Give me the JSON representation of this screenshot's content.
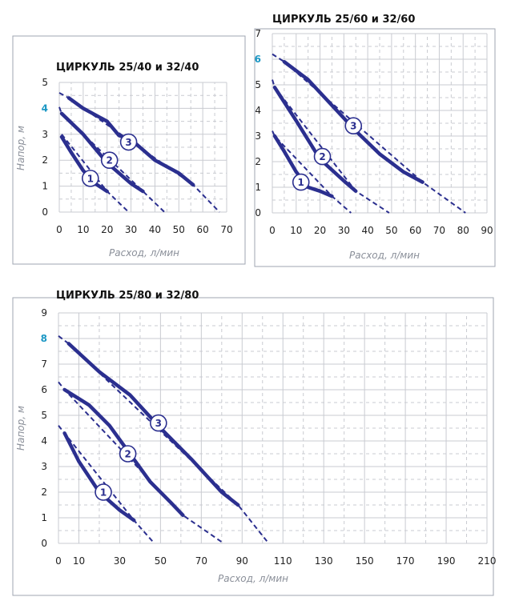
{
  "chart_data": [
    {
      "type": "line",
      "title": "ЦИРКУЛЬ 25/40 и 32/40",
      "xlabel": "Расход, л/мин",
      "ylabel": "Напор, м",
      "xlim": [
        0,
        70
      ],
      "ylim": [
        0,
        5
      ],
      "xticks": [
        "0",
        "10",
        "20",
        "30",
        "40",
        "50",
        "60",
        "70"
      ],
      "yticks": [
        "0",
        "1",
        "2",
        "3",
        "4",
        "5"
      ],
      "highlight_y": "4",
      "grid": true,
      "series": [
        {
          "name": "1",
          "x": [
            1,
            5,
            10,
            15,
            20
          ],
          "y": [
            2.9,
            2.3,
            1.6,
            1.1,
            0.8
          ],
          "ext_x": [
            1,
            20,
            29
          ],
          "ext_y": [
            3.0,
            0.8,
            0.0
          ],
          "label_x": 13,
          "label_y": 1.3
        },
        {
          "name": "2",
          "x": [
            1,
            10,
            20,
            30,
            35
          ],
          "y": [
            3.8,
            3.0,
            1.9,
            1.1,
            0.8
          ],
          "ext_x": [
            0,
            1,
            35,
            44
          ],
          "ext_y": [
            4.05,
            3.8,
            0.8,
            0.0
          ],
          "label_x": 21,
          "label_y": 2.0
        },
        {
          "name": "3",
          "x": [
            4,
            10,
            20,
            25,
            30,
            40,
            50,
            56
          ],
          "y": [
            4.4,
            4.0,
            3.5,
            2.95,
            2.8,
            2.0,
            1.5,
            1.05
          ],
          "ext_x": [
            0,
            4,
            56,
            67
          ],
          "ext_y": [
            4.6,
            4.4,
            1.05,
            0.0
          ],
          "label_x": 29,
          "label_y": 2.7
        }
      ]
    },
    {
      "type": "line",
      "title": "ЦИРКУЛЬ 25/60 и 32/60",
      "xlabel": "Расход, л/мин",
      "ylabel": "",
      "xlim": [
        0,
        90
      ],
      "ylim": [
        0,
        7
      ],
      "xticks": [
        "0",
        "10",
        "20",
        "30",
        "40",
        "50",
        "60",
        "70",
        "80",
        "90"
      ],
      "yticks": [
        "0",
        "1",
        "2",
        "3",
        "4",
        "5",
        "6",
        "7"
      ],
      "highlight_y": "6",
      "grid": true,
      "series": [
        {
          "name": "1",
          "x": [
            1,
            5,
            10,
            15,
            20,
            25
          ],
          "y": [
            3.0,
            2.4,
            1.6,
            1.0,
            0.85,
            0.65
          ],
          "ext_x": [
            0,
            1,
            25,
            33
          ],
          "ext_y": [
            3.2,
            3.0,
            0.65,
            0.0
          ],
          "label_x": 12,
          "label_y": 1.2
        },
        {
          "name": "2",
          "x": [
            1,
            10,
            20,
            30,
            35
          ],
          "y": [
            4.9,
            3.6,
            2.1,
            1.25,
            0.85
          ],
          "ext_x": [
            0,
            1,
            35,
            49
          ],
          "ext_y": [
            5.2,
            4.9,
            0.85,
            0.0
          ],
          "label_x": 21,
          "label_y": 2.2
        },
        {
          "name": "3",
          "x": [
            5,
            15,
            25,
            35,
            45,
            55,
            63
          ],
          "y": [
            5.9,
            5.2,
            4.2,
            3.2,
            2.3,
            1.6,
            1.2
          ],
          "ext_x": [
            0,
            5,
            63,
            81
          ],
          "ext_y": [
            6.2,
            5.9,
            1.2,
            0.0
          ],
          "label_x": 34,
          "label_y": 3.4
        }
      ]
    },
    {
      "type": "line",
      "title": "ЦИРКУЛЬ 25/80 и 32/80",
      "xlabel": "Расход, л/мин",
      "ylabel": "Напор, м",
      "xlim": [
        0,
        210
      ],
      "ylim": [
        0,
        9
      ],
      "xticks": [
        "0",
        "10",
        "30",
        "50",
        "70",
        "90",
        "110",
        "130",
        "150",
        "170",
        "190",
        "210"
      ],
      "xtick_values": [
        0,
        10,
        30,
        50,
        70,
        90,
        110,
        130,
        150,
        170,
        190,
        210
      ],
      "yticks": [
        "0",
        "1",
        "2",
        "3",
        "4",
        "5",
        "6",
        "7",
        "8",
        "9"
      ],
      "highlight_y": "8",
      "grid": true,
      "series": [
        {
          "name": "1",
          "x": [
            3,
            10,
            20,
            30,
            37
          ],
          "y": [
            4.3,
            3.2,
            2.0,
            1.3,
            0.9
          ],
          "ext_x": [
            0,
            3,
            37,
            47
          ],
          "ext_y": [
            4.6,
            4.3,
            0.9,
            0.0
          ],
          "label_x": 22,
          "label_y": 2.0
        },
        {
          "name": "2",
          "x": [
            3,
            15,
            25,
            35,
            45,
            55,
            61
          ],
          "y": [
            6.0,
            5.4,
            4.6,
            3.5,
            2.4,
            1.6,
            1.1
          ],
          "ext_x": [
            0,
            3,
            61,
            81
          ],
          "ext_y": [
            6.3,
            6.0,
            1.1,
            0.0
          ],
          "label_x": 34,
          "label_y": 3.5
        },
        {
          "name": "3",
          "x": [
            5,
            20,
            35,
            50,
            65,
            80,
            88
          ],
          "y": [
            7.8,
            6.7,
            5.8,
            4.5,
            3.3,
            2.0,
            1.5
          ],
          "ext_x": [
            0,
            5,
            88,
            103
          ],
          "ext_y": [
            8.1,
            7.8,
            1.5,
            0.0
          ],
          "label_x": 49,
          "label_y": 4.7
        }
      ]
    }
  ]
}
